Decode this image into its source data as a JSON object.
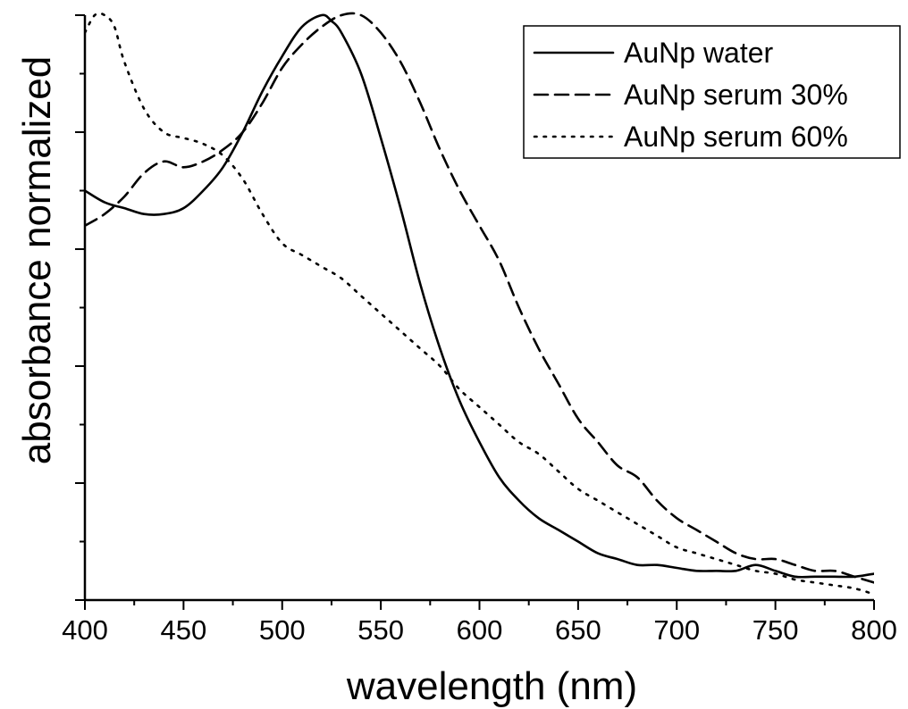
{
  "chart_data": {
    "type": "line",
    "title": "",
    "xlabel": "wavelength (nm)",
    "ylabel": "absorbance normalized",
    "xlim": [
      400,
      800
    ],
    "ylim": [
      0,
      1
    ],
    "x_ticks": [
      "400",
      "450",
      "500",
      "550",
      "600",
      "650",
      "700",
      "750",
      "800"
    ],
    "y_tick_labels_shown": false,
    "grid": false,
    "legend_position": "top-right",
    "series": [
      {
        "name": "AuNp water",
        "line_style": "solid",
        "color": "#000000",
        "x": [
          400,
          410,
          420,
          430,
          440,
          450,
          460,
          470,
          480,
          490,
          500,
          510,
          520,
          525,
          530,
          540,
          550,
          560,
          570,
          580,
          590,
          600,
          610,
          620,
          630,
          640,
          650,
          660,
          670,
          680,
          690,
          700,
          710,
          720,
          730,
          740,
          750,
          760,
          770,
          780,
          790,
          800
        ],
        "y": [
          0.7,
          0.68,
          0.67,
          0.66,
          0.66,
          0.67,
          0.7,
          0.74,
          0.8,
          0.87,
          0.93,
          0.98,
          1.0,
          0.99,
          0.97,
          0.9,
          0.79,
          0.67,
          0.54,
          0.43,
          0.34,
          0.27,
          0.21,
          0.17,
          0.14,
          0.12,
          0.1,
          0.08,
          0.07,
          0.06,
          0.06,
          0.055,
          0.05,
          0.05,
          0.05,
          0.06,
          0.05,
          0.04,
          0.04,
          0.04,
          0.04,
          0.045
        ]
      },
      {
        "name": "AuNp serum 30%",
        "line_style": "dashed",
        "color": "#000000",
        "x": [
          400,
          410,
          420,
          430,
          440,
          450,
          460,
          470,
          480,
          490,
          500,
          510,
          520,
          530,
          540,
          550,
          560,
          570,
          580,
          590,
          600,
          610,
          620,
          630,
          640,
          650,
          660,
          670,
          680,
          690,
          700,
          710,
          720,
          730,
          740,
          750,
          760,
          770,
          780,
          790,
          800
        ],
        "y": [
          0.64,
          0.66,
          0.69,
          0.73,
          0.75,
          0.74,
          0.75,
          0.77,
          0.8,
          0.85,
          0.91,
          0.95,
          0.98,
          1.0,
          1.0,
          0.97,
          0.92,
          0.85,
          0.77,
          0.7,
          0.64,
          0.58,
          0.5,
          0.43,
          0.37,
          0.31,
          0.27,
          0.23,
          0.21,
          0.17,
          0.14,
          0.12,
          0.1,
          0.08,
          0.07,
          0.07,
          0.06,
          0.05,
          0.05,
          0.04,
          0.03
        ]
      },
      {
        "name": "AuNp serum 60%",
        "line_style": "dotted",
        "color": "#000000",
        "x": [
          400,
          405,
          410,
          415,
          420,
          430,
          440,
          450,
          460,
          470,
          480,
          490,
          500,
          510,
          520,
          530,
          540,
          550,
          560,
          570,
          580,
          590,
          600,
          610,
          620,
          630,
          640,
          650,
          660,
          670,
          680,
          690,
          700,
          710,
          720,
          730,
          740,
          750,
          760,
          770,
          780,
          790,
          800
        ],
        "y": [
          0.97,
          1.0,
          1.0,
          0.98,
          0.92,
          0.84,
          0.8,
          0.79,
          0.78,
          0.76,
          0.72,
          0.66,
          0.61,
          0.59,
          0.57,
          0.55,
          0.52,
          0.49,
          0.46,
          0.43,
          0.4,
          0.36,
          0.33,
          0.3,
          0.27,
          0.25,
          0.22,
          0.19,
          0.17,
          0.15,
          0.13,
          0.11,
          0.09,
          0.08,
          0.07,
          0.06,
          0.05,
          0.045,
          0.035,
          0.03,
          0.025,
          0.02,
          0.01
        ]
      }
    ]
  }
}
